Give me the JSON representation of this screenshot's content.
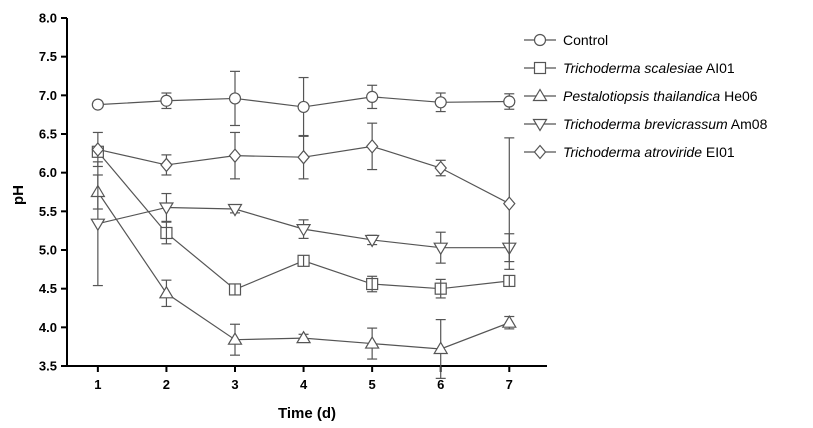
{
  "chart_data": {
    "type": "line",
    "xlabel": "Time (d)",
    "ylabel": "pH",
    "x": [
      1,
      2,
      3,
      4,
      5,
      6,
      7
    ],
    "xlim": [
      0.55,
      7.55
    ],
    "ylim": [
      3.5,
      8.0
    ],
    "yticks": [
      "3.5",
      "4.0",
      "4.5",
      "5.0",
      "5.5",
      "6.0",
      "6.5",
      "7.0",
      "7.5",
      "8.0"
    ],
    "xticks": [
      "1",
      "2",
      "3",
      "4",
      "5",
      "6",
      "7"
    ],
    "grid": false,
    "legend_position": "top-right",
    "series": [
      {
        "name": "Control",
        "prefix": "",
        "italic": "",
        "suffix": "",
        "marker": "circle",
        "values": [
          6.88,
          6.93,
          6.96,
          6.85,
          6.98,
          6.91,
          6.92
        ],
        "errors": [
          0.0,
          0.1,
          0.35,
          0.38,
          0.15,
          0.12,
          0.1
        ]
      },
      {
        "name": "Trichoderma scalesiae AI01",
        "prefix": "",
        "italic": "Trichoderma scalesiae",
        "suffix": " AI01",
        "marker": "square",
        "values": [
          6.27,
          5.22,
          4.49,
          4.86,
          4.56,
          4.5,
          4.6
        ],
        "errors": [
          0.05,
          0.14,
          0.06,
          0.06,
          0.1,
          0.12,
          0.05
        ]
      },
      {
        "name": "Pestalotiopsis thailandica He06",
        "prefix": "",
        "italic": "Pestalotiopsis thailandica",
        "suffix": " He06",
        "marker": "triangle-up",
        "values": [
          5.75,
          4.44,
          3.84,
          3.86,
          3.79,
          3.72,
          4.06
        ],
        "errors": [
          0.22,
          0.17,
          0.2,
          0.05,
          0.2,
          0.38,
          0.08
        ]
      },
      {
        "name": "Trichoderma brevicrassum Am08",
        "prefix": "",
        "italic": "Trichoderma brevicrassum",
        "suffix": " Am08",
        "marker": "triangle-down",
        "values": [
          5.34,
          5.55,
          5.53,
          5.27,
          5.13,
          5.03,
          5.03
        ],
        "errors": [
          0.8,
          0.18,
          0.05,
          0.12,
          0.06,
          0.2,
          0.18
        ]
      },
      {
        "name": "Trichoderma atroviride EI01",
        "prefix": "",
        "italic": "Trichoderma atroviride",
        "suffix": " EI01",
        "marker": "diamond",
        "values": [
          6.3,
          6.1,
          6.22,
          6.2,
          6.34,
          6.06,
          5.6
        ],
        "errors": [
          0.22,
          0.13,
          0.3,
          0.28,
          0.3,
          0.1,
          0.85
        ]
      }
    ]
  }
}
